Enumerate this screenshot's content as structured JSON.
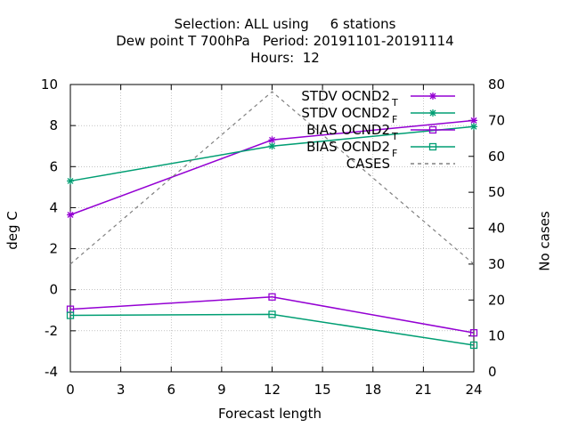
{
  "chart_data": {
    "type": "line",
    "title": [
      "Selection: ALL using     6 stations",
      "Dew point T 700hPa   Period: 20191101-20191114",
      "Hours:  12"
    ],
    "xlabel": "Forecast length",
    "ylabel": "deg C",
    "y2label": "No cases",
    "xlim": [
      0,
      24
    ],
    "ylim": [
      -4,
      10
    ],
    "y2lim": [
      0,
      80
    ],
    "xticks": [
      0,
      3,
      6,
      9,
      12,
      15,
      18,
      21,
      24
    ],
    "yticks": [
      -4,
      -2,
      0,
      2,
      4,
      6,
      8,
      10
    ],
    "y2ticks": [
      0,
      10,
      20,
      30,
      40,
      50,
      60,
      70,
      80
    ],
    "grid": true,
    "legend_position": "top-right",
    "series": [
      {
        "name": "STDV OCND2",
        "sub": "T",
        "axis": "y1",
        "color": "#9400d3",
        "marker": "star",
        "dash": "",
        "x": [
          0,
          12,
          24
        ],
        "y": [
          3.65,
          7.3,
          8.25
        ]
      },
      {
        "name": "STDV OCND2",
        "sub": "F",
        "axis": "y1",
        "color": "#009e73",
        "marker": "star",
        "dash": "",
        "x": [
          0,
          12,
          24
        ],
        "y": [
          5.3,
          7.0,
          7.95
        ]
      },
      {
        "name": "BIAS OCND2",
        "sub": "T",
        "axis": "y1",
        "color": "#9400d3",
        "marker": "square",
        "dash": "",
        "x": [
          0,
          12,
          24
        ],
        "y": [
          -0.95,
          -0.35,
          -2.1
        ]
      },
      {
        "name": "BIAS OCND2",
        "sub": "F",
        "axis": "y1",
        "color": "#009e73",
        "marker": "square",
        "dash": "",
        "x": [
          0,
          12,
          24
        ],
        "y": [
          -1.25,
          -1.2,
          -2.7
        ]
      },
      {
        "name": "CASES",
        "sub": "",
        "axis": "y2",
        "color": "#808080",
        "marker": "none",
        "dash": "4,4",
        "x": [
          0,
          12,
          24
        ],
        "y": [
          30,
          78,
          30
        ]
      }
    ]
  }
}
